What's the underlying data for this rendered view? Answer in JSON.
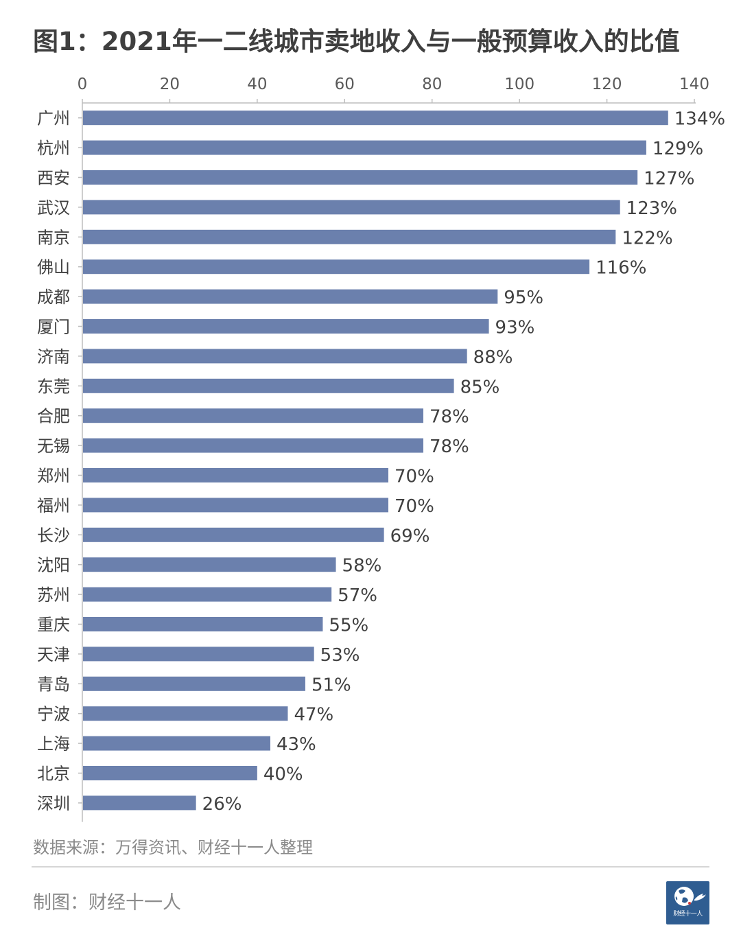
{
  "title": "图1：2021年一二线城市卖地收入与一般预算收入的比值",
  "source": "数据来源：万得资讯、财经十一人整理",
  "credit": "制图：财经十一人",
  "logo": {
    "text": "财经十一人",
    "color": "#2f5d91"
  },
  "colors": {
    "bar": "#6b80ad",
    "axis": "#bdbdbd",
    "tick_text": "#595959",
    "label_text": "#404040"
  },
  "chart_data": {
    "type": "bar",
    "orientation": "horizontal",
    "title": "图1：2021年一二线城市卖地收入与一般预算收入的比值",
    "xaxis_position": "top",
    "xlim": [
      0,
      140
    ],
    "xticks": [
      0,
      20,
      40,
      60,
      80,
      100,
      120,
      140
    ],
    "grid": false,
    "categories": [
      "广州",
      "杭州",
      "西安",
      "武汉",
      "南京",
      "佛山",
      "成都",
      "厦门",
      "济南",
      "东莞",
      "合肥",
      "无锡",
      "郑州",
      "福州",
      "长沙",
      "沈阳",
      "苏州",
      "重庆",
      "天津",
      "青岛",
      "宁波",
      "上海",
      "北京",
      "深圳"
    ],
    "values": [
      134,
      129,
      127,
      123,
      122,
      116,
      95,
      93,
      88,
      85,
      78,
      78,
      70,
      70,
      69,
      58,
      57,
      55,
      53,
      51,
      47,
      43,
      40,
      26
    ],
    "labels": [
      "134%",
      "129%",
      "127%",
      "123%",
      "122%",
      "116%",
      "95%",
      "93%",
      "88%",
      "85%",
      "78%",
      "78%",
      "70%",
      "70%",
      "69%",
      "58%",
      "57%",
      "55%",
      "53%",
      "51%",
      "47%",
      "43%",
      "40%",
      "26%"
    ]
  }
}
